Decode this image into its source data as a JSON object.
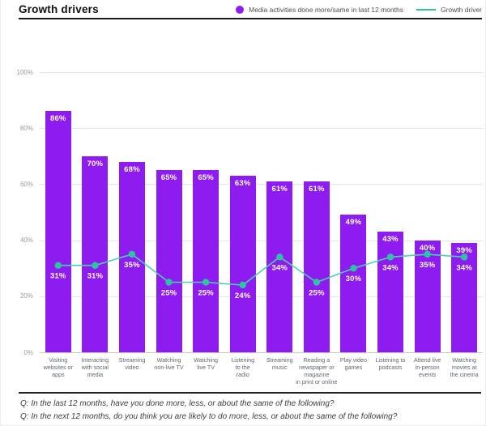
{
  "header": {
    "title": "Growth drivers",
    "legend": {
      "bar": {
        "label": "Media activities done more/same in last 12 months",
        "color": "#8E1BF0"
      },
      "line": {
        "label": "Growth driver",
        "color": "#2BC5A1"
      }
    }
  },
  "chart_data": {
    "type": "bar",
    "subtype": "bar-with-line-overlay",
    "title": "Growth drivers",
    "xlabel": "",
    "ylabel": "",
    "ylim": [
      0,
      100
    ],
    "yticks": [
      0,
      20,
      40,
      60,
      80,
      100
    ],
    "ytick_suffix": "%",
    "grid": true,
    "value_labels": true,
    "legend_position": "top-right",
    "categories": [
      "Visiting\nwebsites or\napps",
      "Interacting\nwith social\nmedia",
      "Streaming\nvideo",
      "Watching\nnon-live TV",
      "Watching\nlive TV",
      "Listening\nto the\nradio",
      "Streaming\nmusic",
      "Reading a\nnewspaper or\nmagazine\nin print or online",
      "Play video\ngames",
      "Listening to\npodcasts",
      "Attend live\nin-person\nevents",
      "Watching\nmovies at\nthe cinema"
    ],
    "series": [
      {
        "name": "Media activities done more/same in last 12 months",
        "type": "bar",
        "color": "#8E1BF0",
        "values": [
          86,
          70,
          68,
          65,
          65,
          63,
          61,
          61,
          49,
          43,
          40,
          39
        ]
      },
      {
        "name": "Growth driver",
        "type": "line",
        "color": "#2BC5A1",
        "line_color": "#4AD2AE",
        "values": [
          31,
          31,
          35,
          25,
          25,
          24,
          34,
          25,
          30,
          34,
          35,
          34
        ]
      }
    ]
  },
  "questions": [
    "Q: In the last 12 months, have you done more, less, or about the same of the following?",
    "Q: In the next 12 months, do you think you are likely to do more, less, or about the same of the following?"
  ]
}
